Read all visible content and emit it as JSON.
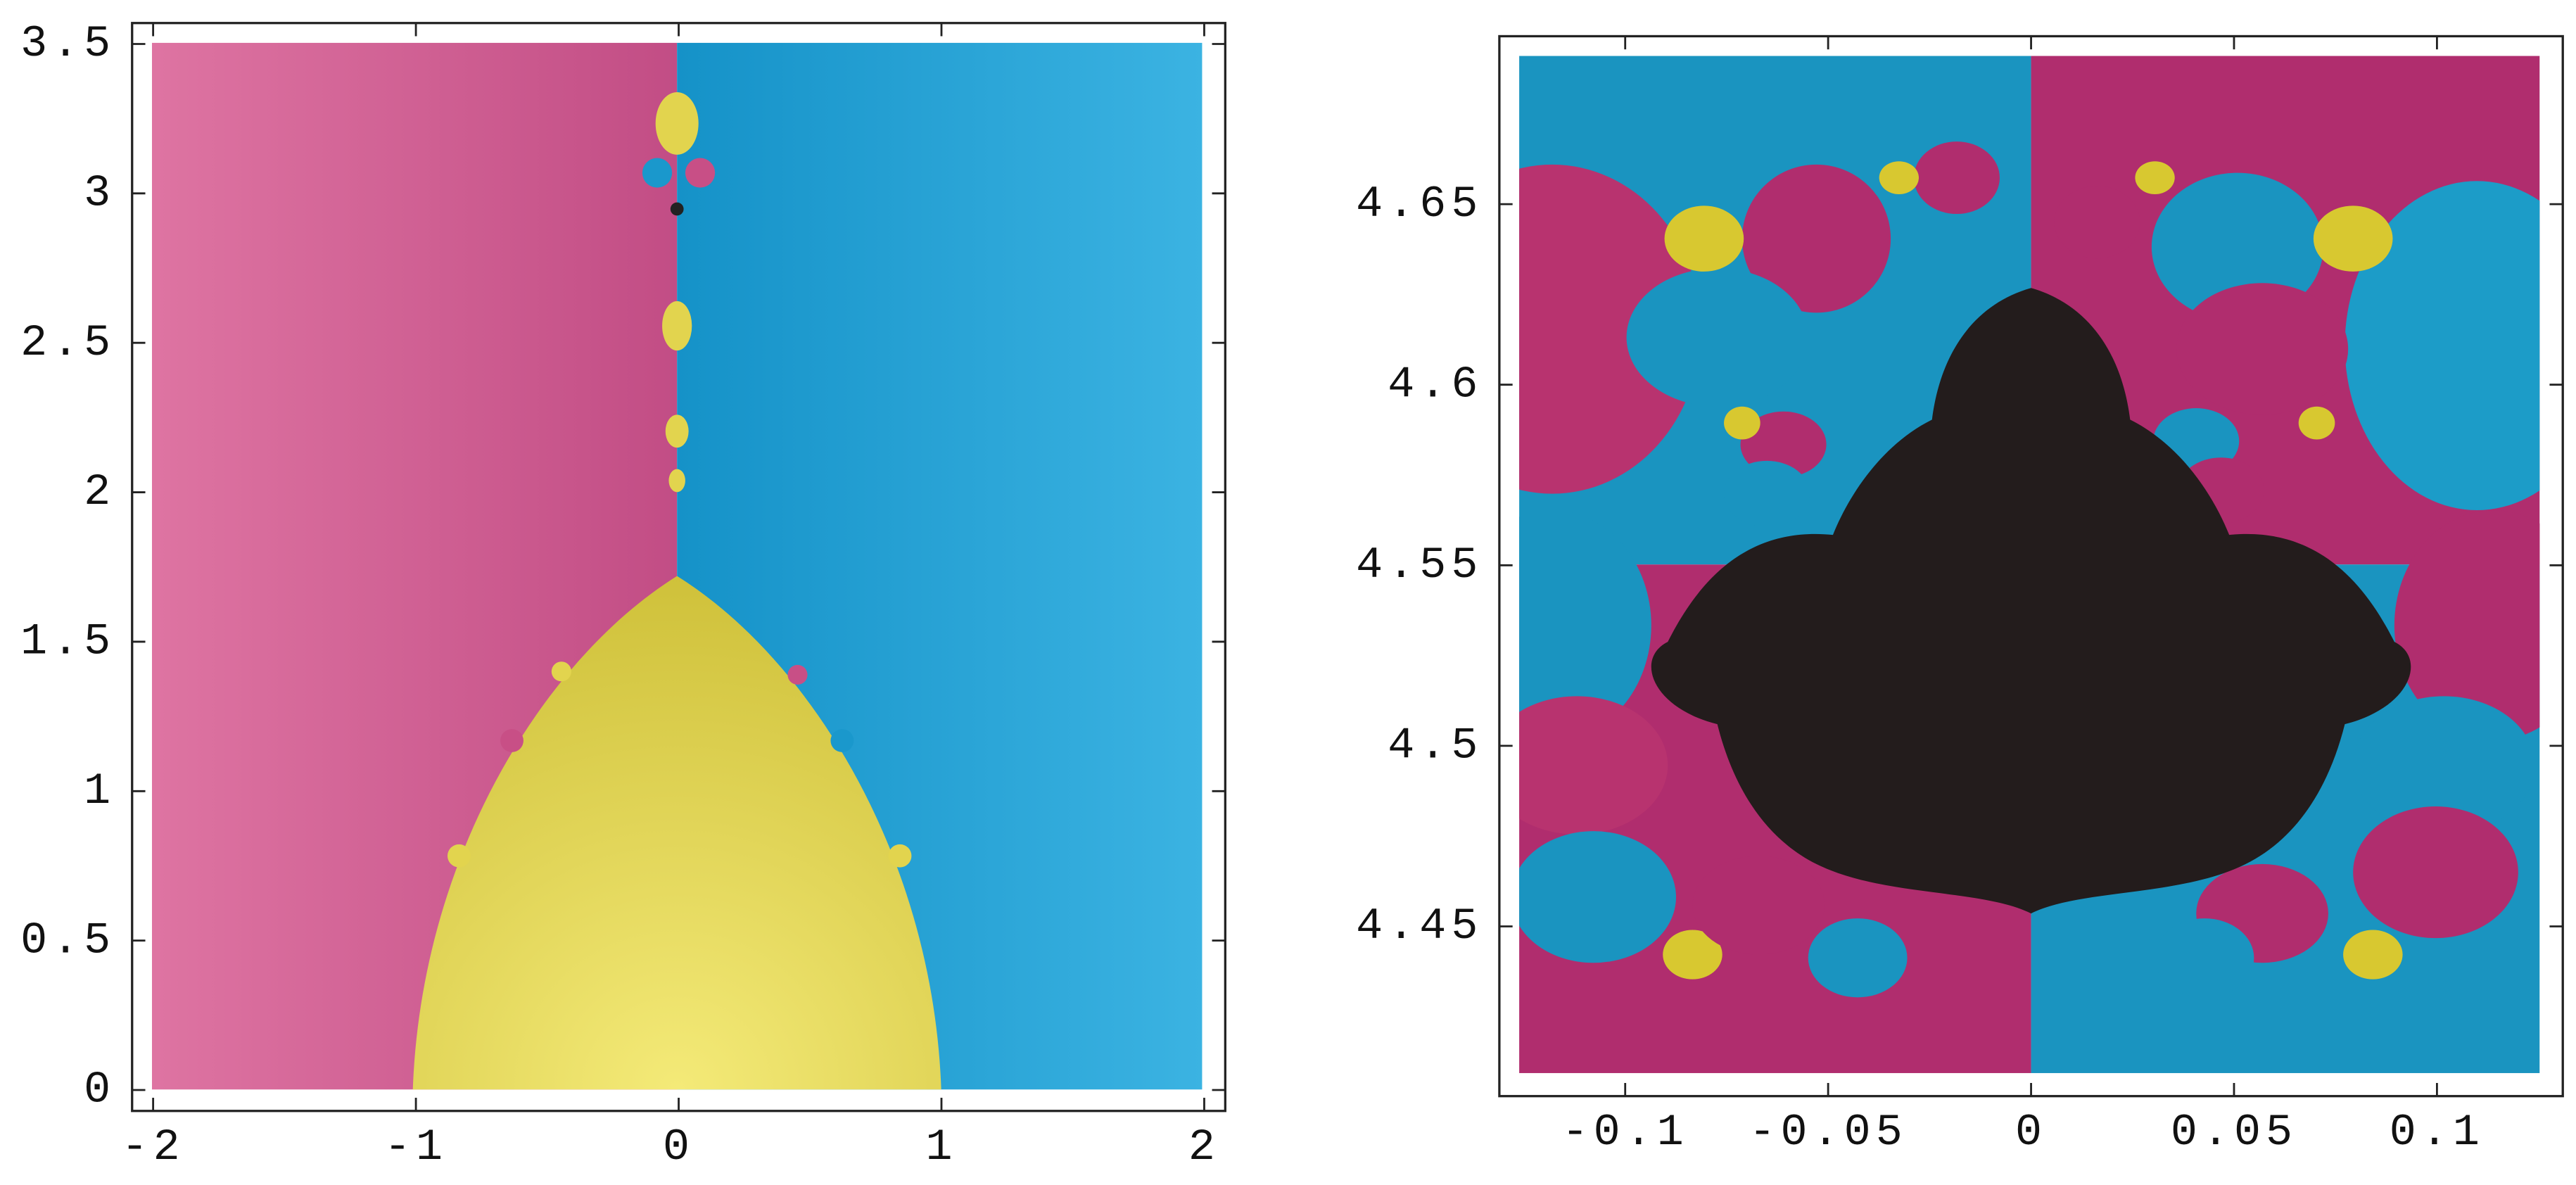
{
  "chart_data": [
    {
      "type": "image",
      "xlim": [
        -2.08,
        2.08
      ],
      "ylim": [
        -0.07,
        3.57
      ],
      "xticks": [
        -2,
        -1,
        0,
        1,
        2
      ],
      "yticks": [
        0,
        0.5,
        1,
        1.5,
        2,
        2.5,
        3,
        3.5
      ]
    },
    {
      "type": "image",
      "xlim": [
        -0.131,
        0.131
      ],
      "ylim": [
        4.403,
        4.6965
      ],
      "xticks": [
        -0.1,
        -0.05,
        0,
        0.05,
        0.1
      ],
      "yticks": [
        4.45,
        4.5,
        4.55,
        4.6,
        4.65
      ]
    }
  ]
}
